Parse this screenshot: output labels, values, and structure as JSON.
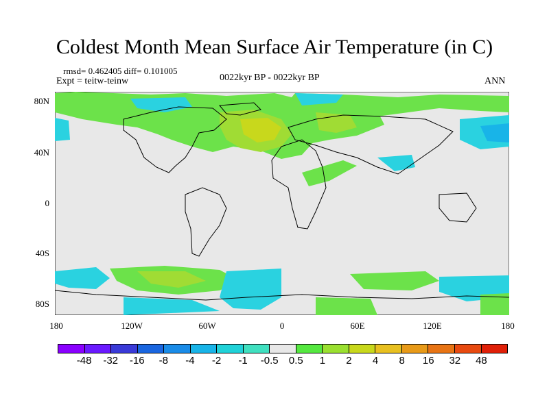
{
  "title": "Coldest Month Mean Surface Air Temperature (in C)",
  "stats": "rmsd= 0.462405 diff= 0.101005",
  "experiment": "Expt = teitw-teinw",
  "period": "0022kyr BP - 0022kyr BP",
  "season": "ANN",
  "y_ticks": [
    "80N",
    "40N",
    "0",
    "40S",
    "80S"
  ],
  "x_ticks": [
    "180",
    "120W",
    "60W",
    "0",
    "60E",
    "120E",
    "180"
  ],
  "colorbar": {
    "colors": [
      "#8a00ff",
      "#6a1aff",
      "#3a3ad8",
      "#1a66e0",
      "#1a8ce8",
      "#18b4e8",
      "#20d2d8",
      "#40e0c0",
      "#e8e8e8",
      "#55e840",
      "#9ae030",
      "#c8d81c",
      "#e8c020",
      "#e89a18",
      "#e87414",
      "#e84a10",
      "#e02008"
    ],
    "labels": [
      "-48",
      "-32",
      "-16",
      "-8",
      "-4",
      "-2",
      "-1",
      "-0.5",
      "0.5",
      "1",
      "2",
      "4",
      "8",
      "16",
      "32",
      "48"
    ]
  }
}
